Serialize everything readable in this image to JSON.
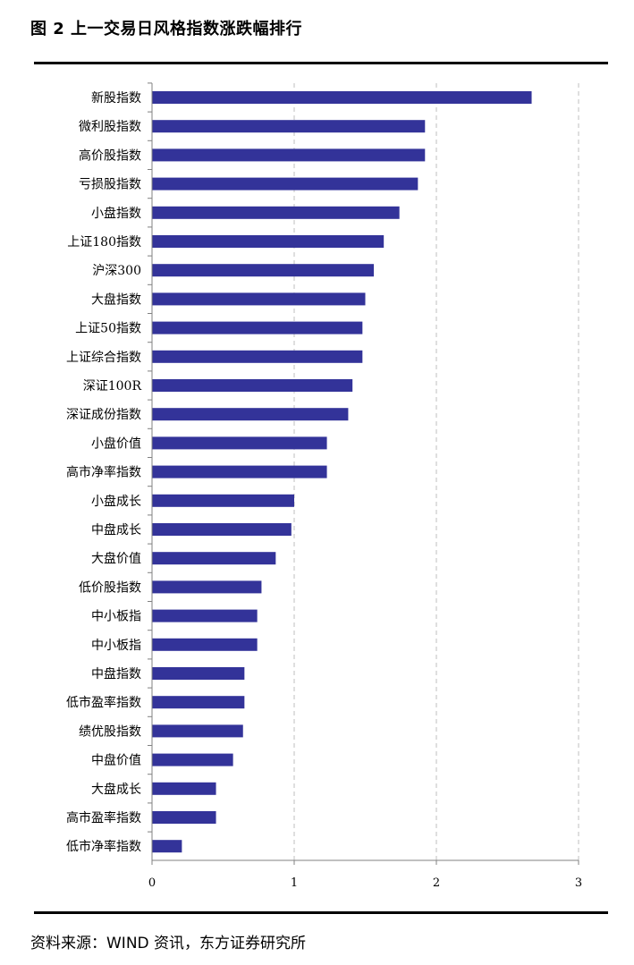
{
  "header": {
    "title": "图 2  上一交易日风格指数涨跌幅排行"
  },
  "footer": {
    "source": "资料来源：WIND 资讯，东方证券研究所"
  },
  "colors": {
    "bar": "#333399",
    "grid": "#bfbfbf",
    "axis": "#808080"
  },
  "chart_data": {
    "type": "bar",
    "orientation": "horizontal",
    "categories": [
      "新股指数",
      "微利股指数",
      "高价股指数",
      "亏损股指数",
      "小盘指数",
      "上证180指数",
      "沪深300",
      "大盘指数",
      "上证50指数",
      "上证综合指数",
      "深证100R",
      "深证成份指数",
      "小盘价值",
      "高市净率指数",
      "小盘成长",
      "中盘成长",
      "大盘价值",
      "低价股指数",
      "中小板指",
      "中小板指",
      "中盘指数",
      "低市盈率指数",
      "绩优股指数",
      "中盘价值",
      "大盘成长",
      "高市盈率指数",
      "低市净率指数"
    ],
    "values": [
      2.67,
      1.92,
      1.92,
      1.87,
      1.74,
      1.63,
      1.56,
      1.5,
      1.48,
      1.48,
      1.41,
      1.38,
      1.23,
      1.23,
      1.0,
      0.98,
      0.87,
      0.77,
      0.74,
      0.74,
      0.65,
      0.65,
      0.64,
      0.57,
      0.45,
      0.45,
      0.21
    ],
    "xlim": [
      0,
      3
    ],
    "xticks": [
      "0",
      "1",
      "2",
      "3"
    ],
    "grid": "vertical-dashed",
    "legend": "none"
  }
}
